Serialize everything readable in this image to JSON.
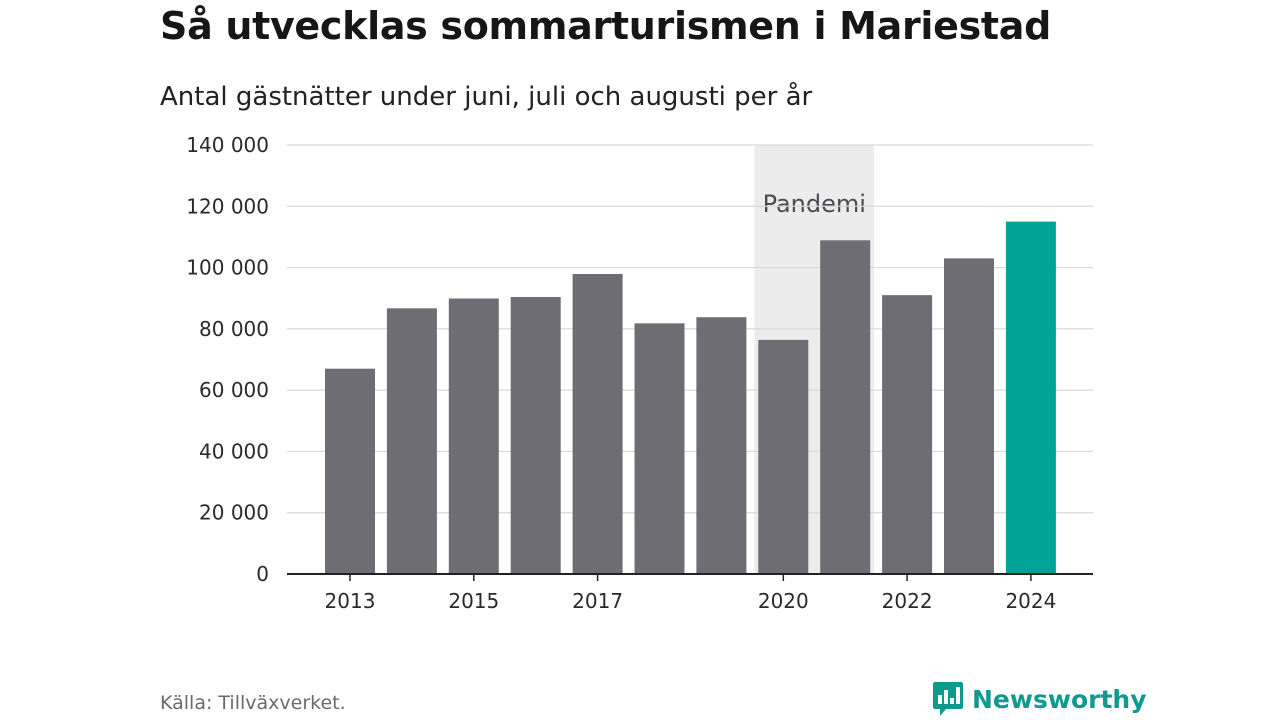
{
  "header": {
    "title": "Så utvecklas sommarturismen i Mariestad",
    "subtitle": "Antal gästnätter under juni, juli och augusti per år"
  },
  "footer": {
    "source": "Källa: Tillväxverket.",
    "brand": "Newsworthy"
  },
  "colors": {
    "bar": "#6e6d74",
    "highlight": "#00a497",
    "annotation_band": "#ececec",
    "gridline": "#d9d9d9",
    "axis": "#222222",
    "brand": "#0e9a8e"
  },
  "chart_data": {
    "type": "bar",
    "title": "Så utvecklas sommarturismen i Mariestad",
    "subtitle": "Antal gästnätter under juni, juli och augusti per år",
    "x": [
      2013,
      2014,
      2015,
      2016,
      2017,
      2018,
      2019,
      2020,
      2021,
      2022,
      2023,
      2024
    ],
    "values": [
      67000,
      86700,
      89900,
      90400,
      97900,
      81800,
      83800,
      76400,
      108900,
      91000,
      103000,
      115000
    ],
    "highlight_x": 2024,
    "x_tick_labels": [
      "2013",
      "2015",
      "2017",
      "2020",
      "2022",
      "2024"
    ],
    "y_tick_labels": [
      "0",
      "20 000",
      "40 000",
      "60 000",
      "80 000",
      "100 000",
      "120 000",
      "140 000"
    ],
    "ylim": [
      0,
      140000
    ],
    "y_ticks": [
      0,
      20000,
      40000,
      60000,
      80000,
      100000,
      120000,
      140000
    ],
    "grid": true,
    "annotation": {
      "label": "Pandemi",
      "x_start": 2020,
      "x_end": 2021
    }
  }
}
